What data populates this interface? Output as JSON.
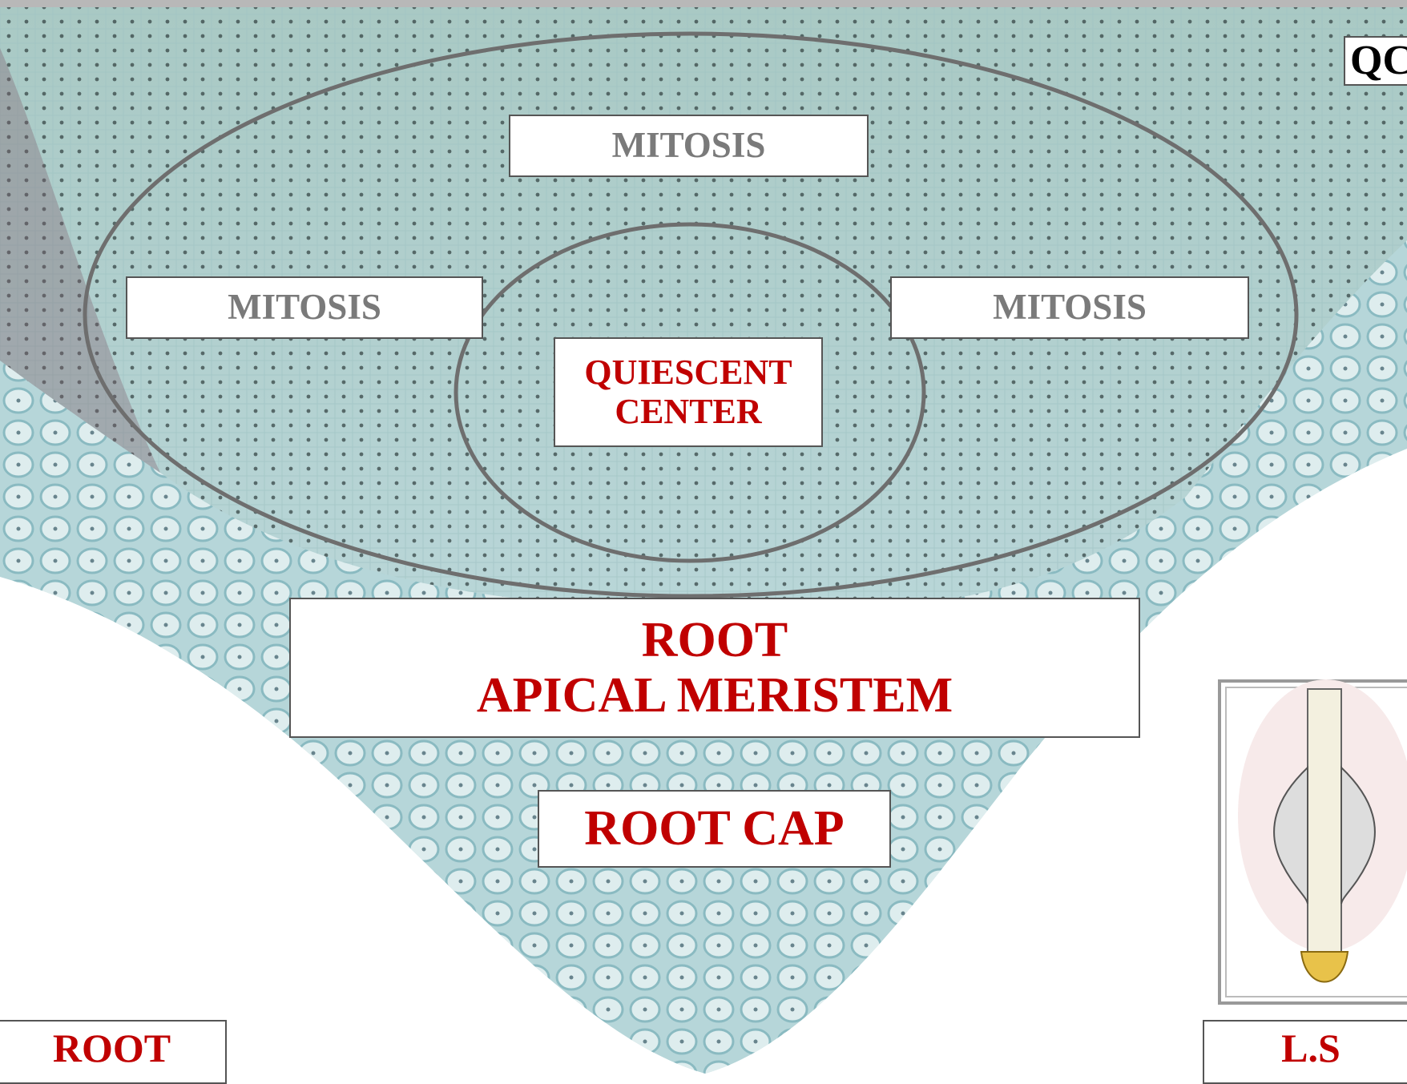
{
  "labels": {
    "mitosis_top": "MITOSIS",
    "mitosis_left": "MITOSIS",
    "mitosis_right": "MITOSIS",
    "quiescent_center": [
      "QUIESCENT",
      "CENTER"
    ],
    "root_apical_meristem": [
      "ROOT",
      "APICAL MERISTEM"
    ],
    "root_cap": "ROOT CAP",
    "root": "ROOT",
    "ls": "L.S",
    "qc": "QC"
  }
}
